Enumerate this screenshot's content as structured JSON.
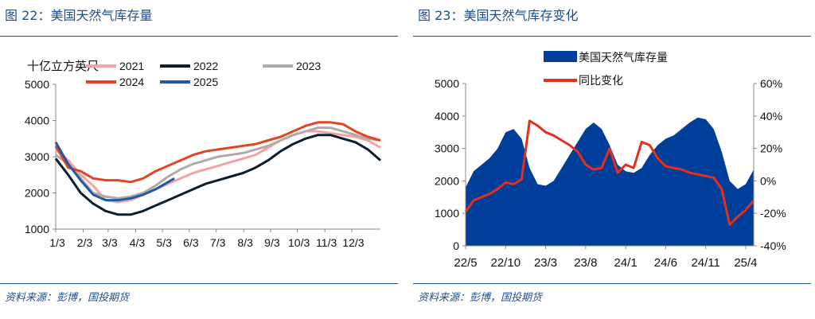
{
  "left": {
    "title": "图 22：美国天然气库存量",
    "source": "资料来源：彭博，国投期货",
    "chart_data": {
      "type": "line",
      "ylabel": "十亿立方英尺",
      "ylim": [
        1000,
        5000
      ],
      "yticks": [
        1000,
        2000,
        3000,
        4000,
        5000
      ],
      "xlim": [
        0,
        52
      ],
      "xtick_labels": [
        "1/3",
        "2/3",
        "3/3",
        "4/3",
        "5/3",
        "6/3",
        "7/3",
        "8/3",
        "9/3",
        "10/3",
        "11/3",
        "12/3"
      ],
      "xtick_positions": [
        0,
        4.4,
        8.4,
        12.8,
        17.1,
        21.4,
        25.7,
        30.1,
        34.4,
        38.7,
        43.1,
        47.4
      ],
      "grid": false,
      "legend": "top",
      "series": [
        {
          "name": "2021",
          "color": "#f2a2a2",
          "x": [
            0,
            2,
            4,
            6,
            8,
            10,
            12,
            14,
            16,
            18,
            20,
            22,
            24,
            26,
            28,
            30,
            32,
            34,
            36,
            38,
            40,
            42,
            44,
            46,
            48,
            50,
            52
          ],
          "values": [
            3200,
            2900,
            2500,
            2200,
            1800,
            1750,
            1800,
            1950,
            2100,
            2250,
            2400,
            2550,
            2650,
            2750,
            2850,
            2950,
            3050,
            3250,
            3450,
            3600,
            3700,
            3700,
            3650,
            3600,
            3550,
            3450,
            3250
          ]
        },
        {
          "name": "2022",
          "color": "#0d1f2d",
          "x": [
            0,
            2,
            4,
            6,
            8,
            10,
            12,
            14,
            16,
            18,
            20,
            22,
            24,
            26,
            28,
            30,
            32,
            34,
            36,
            38,
            40,
            42,
            44,
            46,
            48,
            50,
            52
          ],
          "values": [
            2950,
            2500,
            2000,
            1700,
            1500,
            1400,
            1400,
            1500,
            1650,
            1800,
            1950,
            2100,
            2250,
            2350,
            2450,
            2550,
            2700,
            2900,
            3150,
            3350,
            3500,
            3600,
            3600,
            3500,
            3400,
            3200,
            2900
          ]
        },
        {
          "name": "2023",
          "color": "#b2aaa6",
          "x": [
            0,
            2,
            4,
            6,
            8,
            10,
            12,
            14,
            16,
            18,
            20,
            22,
            24,
            26,
            28,
            30,
            32,
            34,
            36,
            38,
            40,
            42,
            44,
            46,
            48,
            50,
            52
          ],
          "values": [
            3050,
            2800,
            2400,
            2000,
            1900,
            1850,
            1900,
            2000,
            2200,
            2450,
            2650,
            2800,
            2900,
            3000,
            3050,
            3100,
            3200,
            3300,
            3450,
            3600,
            3700,
            3800,
            3800,
            3700,
            3600,
            3500,
            3450
          ]
        },
        {
          "name": "2024",
          "color": "#e14525",
          "x": [
            0,
            2,
            4,
            6,
            8,
            10,
            12,
            14,
            16,
            18,
            20,
            22,
            24,
            26,
            28,
            30,
            32,
            34,
            36,
            38,
            40,
            42,
            44,
            46,
            48,
            50,
            52
          ],
          "values": [
            3300,
            2700,
            2600,
            2400,
            2350,
            2350,
            2300,
            2400,
            2600,
            2750,
            2900,
            3050,
            3150,
            3200,
            3250,
            3300,
            3350,
            3450,
            3550,
            3700,
            3850,
            3950,
            3950,
            3900,
            3700,
            3550,
            3450
          ]
        },
        {
          "name": "2025",
          "color": "#1f5aa6",
          "x": [
            0,
            2,
            4,
            6,
            8,
            10,
            12,
            14,
            16,
            18,
            19
          ],
          "values": [
            3400,
            2800,
            2350,
            1950,
            1800,
            1800,
            1850,
            1950,
            2100,
            2300,
            2400
          ]
        }
      ]
    }
  },
  "right": {
    "title": "图 23：美国天然气库存变化",
    "source": "资料来源：彭博，国投期货",
    "chart_data": {
      "type": "area",
      "ylim_left": [
        0,
        5000
      ],
      "yticks_left": [
        0,
        1000,
        2000,
        3000,
        4000,
        5000
      ],
      "ylim_right": [
        -0.4,
        0.6
      ],
      "yticks_right": [
        "-40%",
        "-20%",
        "0%",
        "20%",
        "40%",
        "60%"
      ],
      "xtick_labels": [
        "22/5",
        "22/10",
        "23/3",
        "23/8",
        "24/1",
        "24/6",
        "24/11",
        "25/4"
      ],
      "xtick_positions": [
        0,
        5,
        10,
        15,
        20,
        25,
        30,
        35
      ],
      "xlim": [
        0,
        36
      ],
      "grid": false,
      "legend": "top-center",
      "series": [
        {
          "name": "美国天然气库存量",
          "kind": "area",
          "color": "#003f99",
          "x": [
            0,
            1,
            2,
            3,
            4,
            5,
            6,
            7,
            8,
            9,
            10,
            11,
            12,
            13,
            14,
            15,
            16,
            17,
            18,
            19,
            20,
            21,
            22,
            23,
            24,
            25,
            26,
            27,
            28,
            29,
            30,
            31,
            32,
            33,
            34,
            35,
            36
          ],
          "values": [
            1800,
            2300,
            2500,
            2700,
            3000,
            3500,
            3600,
            3300,
            2400,
            1900,
            1850,
            2000,
            2400,
            2800,
            3200,
            3600,
            3800,
            3600,
            3100,
            2500,
            2300,
            2250,
            2400,
            2800,
            3100,
            3300,
            3400,
            3600,
            3800,
            3950,
            3900,
            3600,
            2900,
            2000,
            1750,
            1900,
            2350
          ]
        },
        {
          "name": "同比变化",
          "kind": "line",
          "color": "#e62e1e",
          "x": [
            0,
            1,
            2,
            3,
            4,
            5,
            6,
            7,
            8,
            9,
            10,
            11,
            12,
            13,
            14,
            15,
            16,
            17,
            18,
            19,
            20,
            21,
            22,
            23,
            24,
            25,
            26,
            27,
            28,
            29,
            30,
            31,
            32,
            33,
            34,
            35,
            36
          ],
          "values": [
            -0.19,
            -0.12,
            -0.1,
            -0.08,
            -0.05,
            -0.01,
            -0.02,
            0.01,
            0.37,
            0.34,
            0.3,
            0.28,
            0.25,
            0.22,
            0.18,
            0.1,
            0.07,
            0.08,
            0.2,
            0.05,
            0.1,
            0.08,
            0.24,
            0.22,
            0.14,
            0.09,
            0.08,
            0.07,
            0.05,
            0.04,
            0.03,
            0.02,
            -0.05,
            -0.27,
            -0.22,
            -0.18,
            -0.12
          ]
        }
      ]
    }
  }
}
